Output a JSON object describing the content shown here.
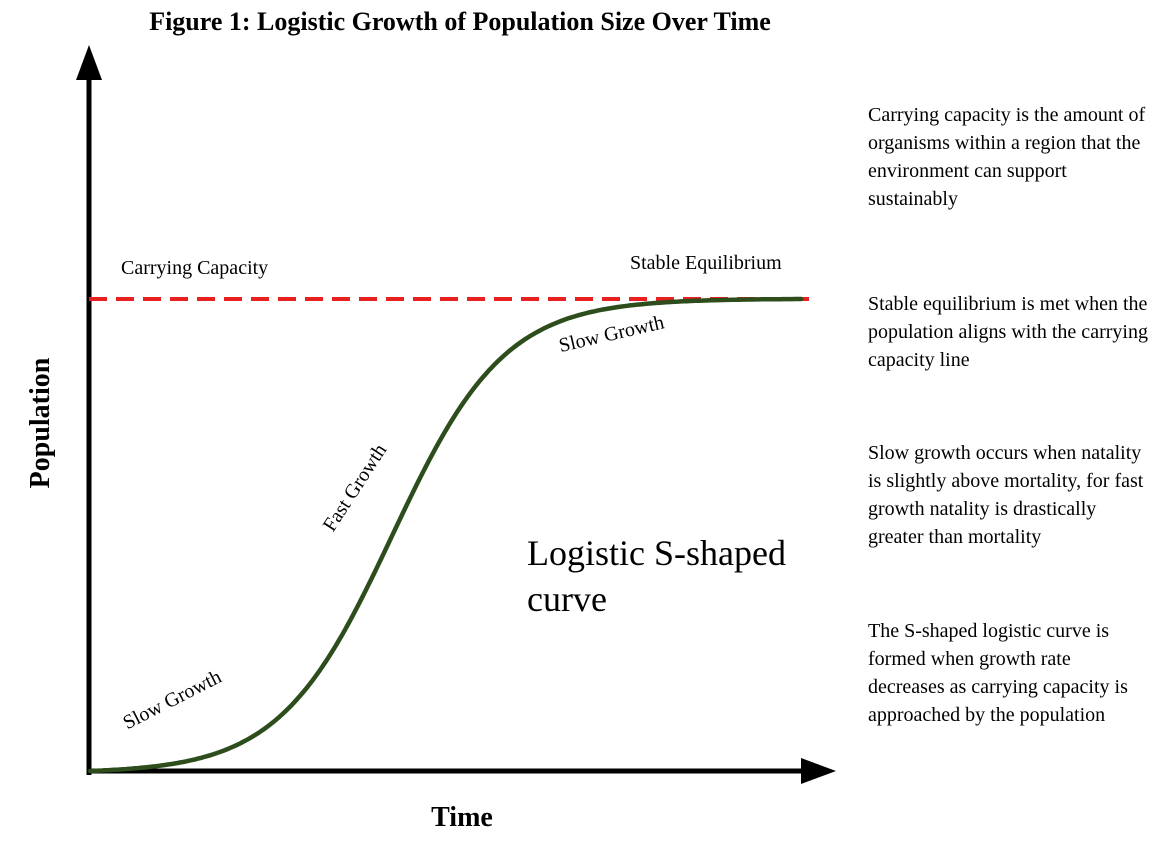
{
  "title": "Figure 1: Logistic Growth of Population Size  Over Time",
  "axes": {
    "x_label": "Time",
    "y_label": "Population"
  },
  "reference_line": {
    "label": "Carrying Capacity",
    "color": "#e8201f",
    "style": "dashed"
  },
  "curve": {
    "color": "#2d4d1c",
    "shape": "logistic"
  },
  "curve_labels": {
    "slow_growth_start": "Slow Growth",
    "fast_growth": "Fast Growth",
    "slow_growth_end": "Slow Growth",
    "stable_equilibrium": "Stable Equilibrium"
  },
  "center_text": "Logistic S-shaped curve",
  "notes": [
    "Carrying capacity is the amount of organisms within a region that the environment can support sustainably",
    "Stable equilibrium is met when the population aligns with the carrying capacity line",
    "Slow growth occurs when natality is slightly above mortality, for fast growth natality is drastically greater than mortality",
    "The S-shaped logistic curve is formed when growth rate decreases as carrying capacity is approached by the population"
  ],
  "icons": {
    "x_axis_arrow": "arrowhead-right-icon",
    "y_axis_arrow": "arrowhead-up-icon"
  }
}
